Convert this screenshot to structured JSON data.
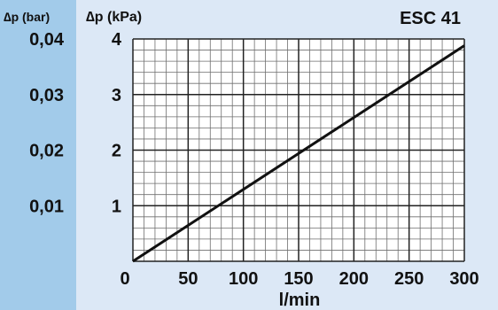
{
  "chart_data": {
    "type": "line",
    "title": "ESC 41",
    "xlabel": "l/min",
    "ylabel_left": "∆p (bar)",
    "ylabel_right": "∆p (kPa)",
    "xlim": [
      0,
      300
    ],
    "ylim": [
      0,
      4
    ],
    "x_ticks": [
      "0",
      "50",
      "100",
      "150",
      "200",
      "250",
      "300"
    ],
    "x_tick_values": [
      0,
      50,
      100,
      150,
      200,
      250,
      300
    ],
    "y_ticks": [
      "1",
      "2",
      "3",
      "4"
    ],
    "y_tick_values": [
      1,
      2,
      3,
      4
    ],
    "bar_ticks": [
      "0,01",
      "0,02",
      "0,03",
      "0,04"
    ],
    "bar_tick_values": [
      1,
      2,
      3,
      4
    ],
    "grid": true,
    "minor_grid_divisions": 5,
    "series": [
      {
        "x": [
          0,
          300
        ],
        "y": [
          0,
          3.88
        ]
      }
    ]
  },
  "colors": {
    "bar_panel": "#a2cbea",
    "main_panel": "#dce8f6",
    "plot_bg": "#ffffff",
    "major_grid": "#222222",
    "minor_grid": "#6f6f6f",
    "line": "#111111"
  }
}
